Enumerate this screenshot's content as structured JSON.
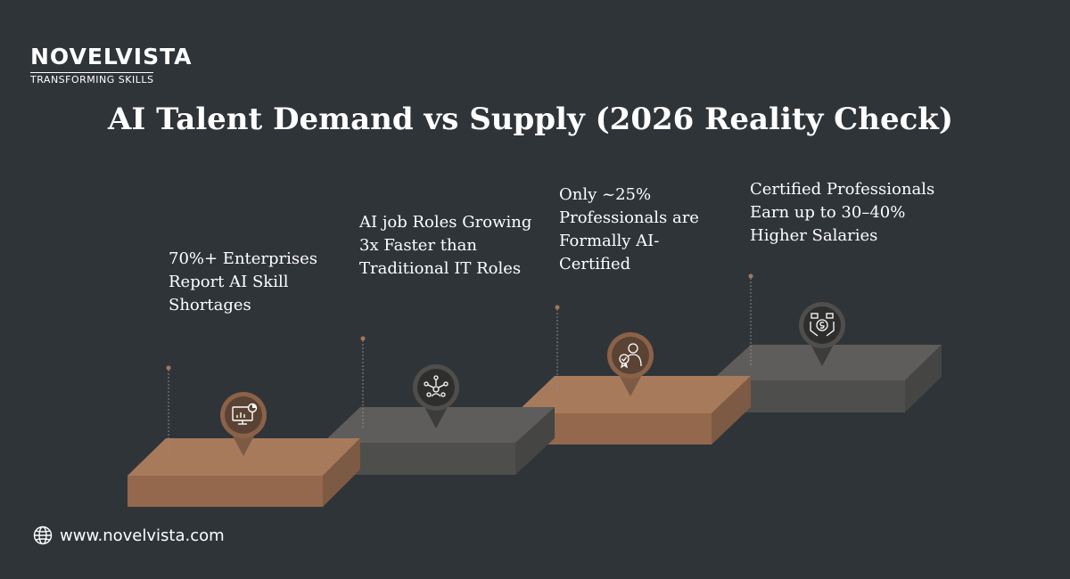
{
  "brand": {
    "name": "NOVELVISTA",
    "tagline": "TRANSFORMING SKILLS"
  },
  "title": "AI Talent Demand vs Supply (2026 Reality Check)",
  "steps": [
    {
      "text": "70%+ Enterprises Report AI Skill Shortages",
      "icon": "analytics-dashboard-icon",
      "color": "#a6775a"
    },
    {
      "text": "AI job Roles Growing 3x Faster than Traditional IT Roles",
      "icon": "network-team-icon",
      "color": "#5b5a58"
    },
    {
      "text": "Only ~25% Professionals are Formally AI-Certified",
      "icon": "certified-person-icon",
      "color": "#a6775a"
    },
    {
      "text": "Certified Professionals Earn up to 30–40% Higher Salaries",
      "icon": "money-hands-icon",
      "color": "#5b5a58"
    }
  ],
  "footer": {
    "url": "www.novelvista.com",
    "icon": "globe-icon"
  },
  "colors": {
    "background": "#2f3439",
    "copper": "#a6775a",
    "gray": "#5b5a58"
  }
}
